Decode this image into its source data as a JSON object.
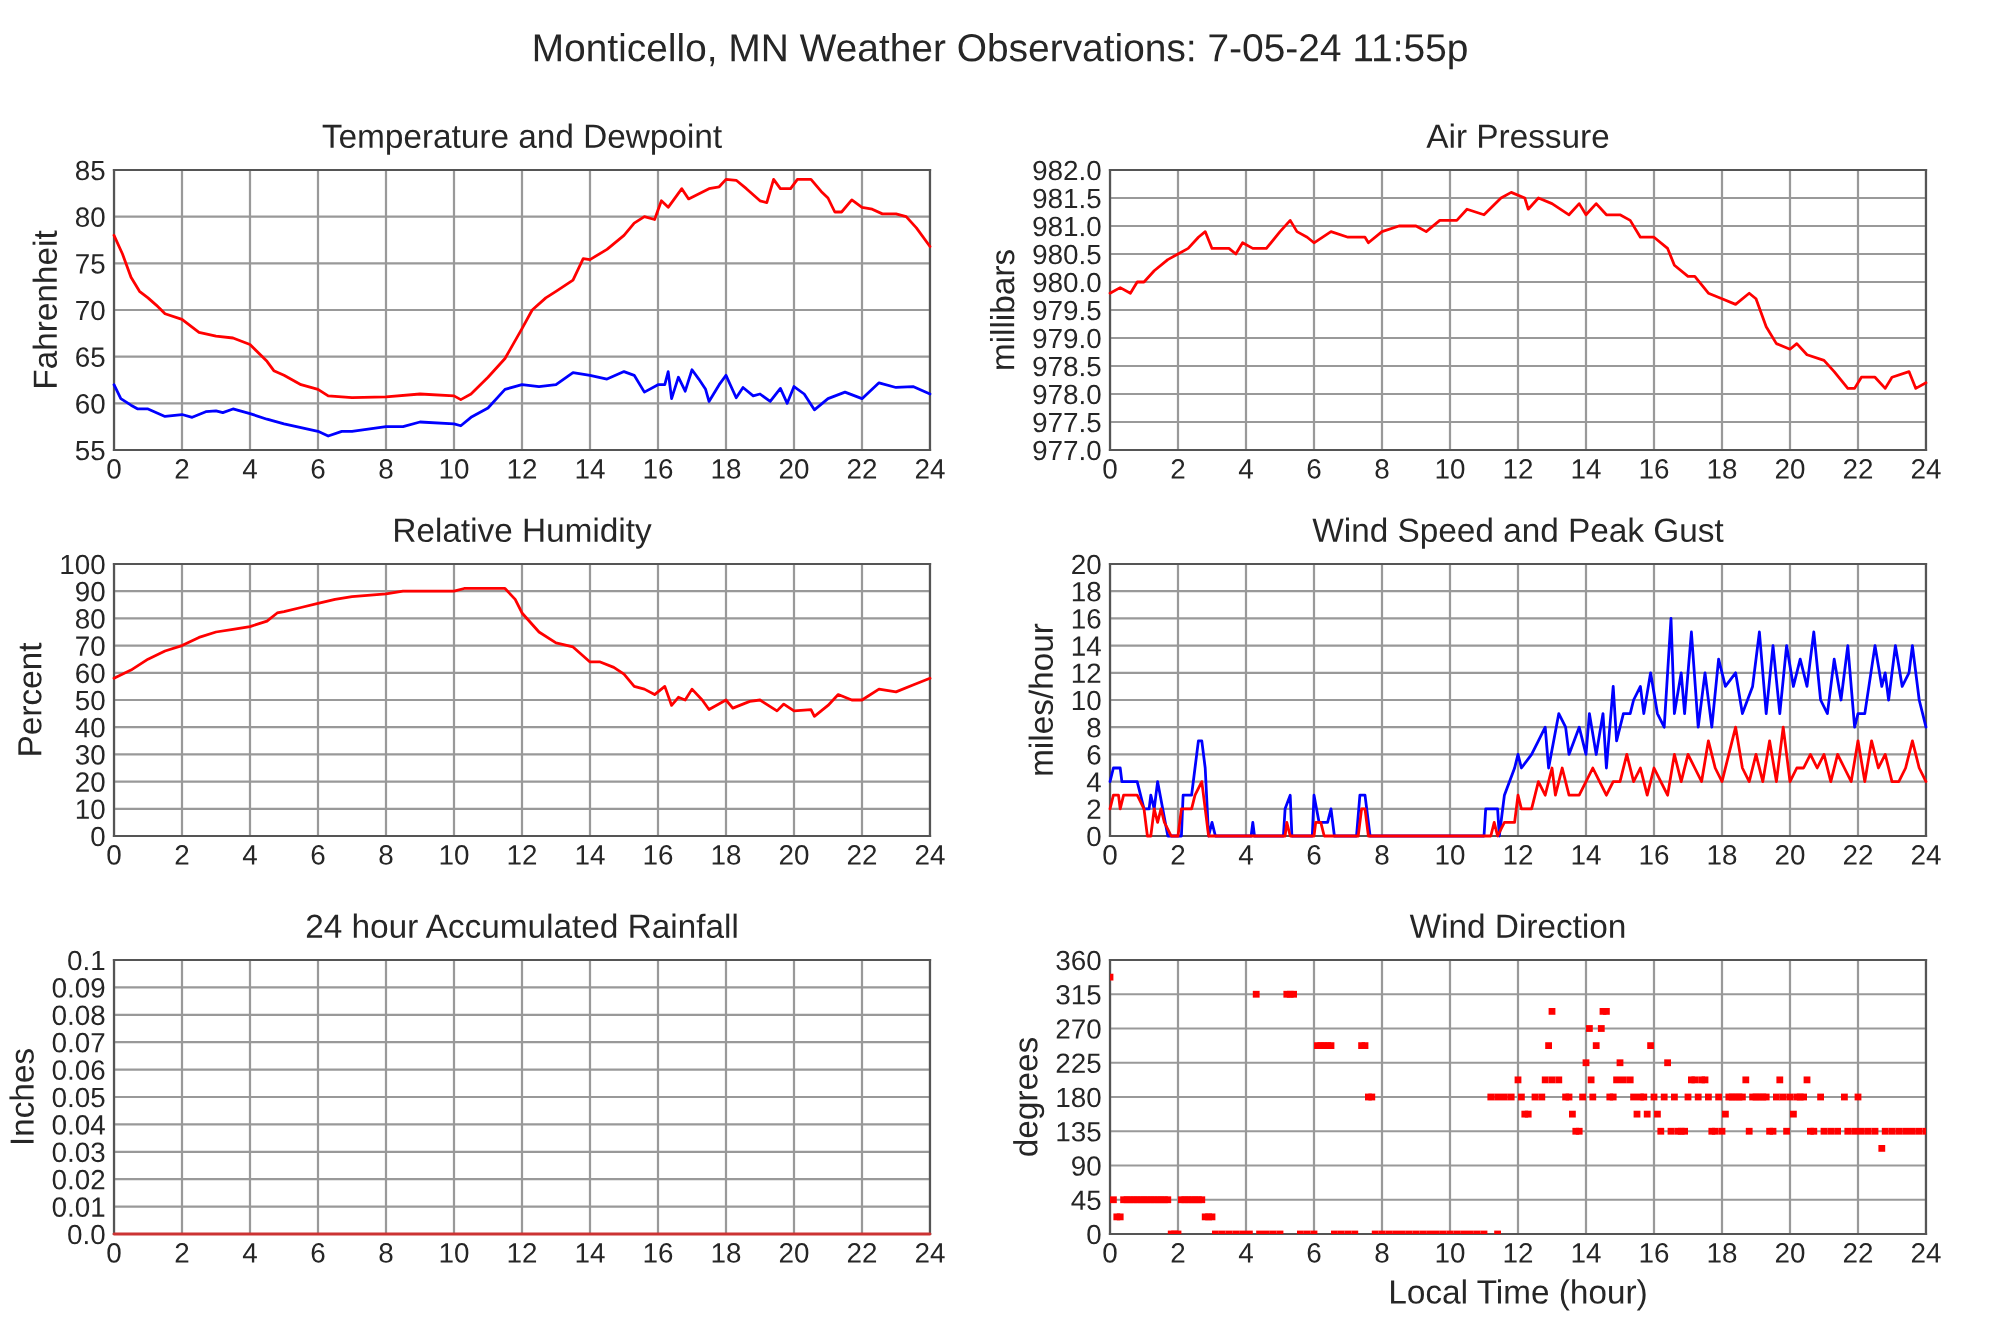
{
  "chart_data": [
    {
      "type": "line",
      "title": "Temperature and Dewpoint",
      "ylabel": "Fahrenheit",
      "annotations": [
        "Monticello, MN Weather Observations: 7-05-24 11:55p"
      ],
      "grid": true,
      "xlim": [
        0,
        24
      ],
      "xticks": [
        0,
        2,
        4,
        6,
        8,
        10,
        12,
        14,
        16,
        18,
        20,
        22,
        24
      ],
      "ylim": [
        55,
        85
      ],
      "yticks": [
        55,
        60,
        65,
        70,
        75,
        80,
        85
      ],
      "series": [
        {
          "color": "#ff0000",
          "x": [
            0,
            0.25,
            0.5,
            0.75,
            1,
            1.25,
            1.5,
            2,
            2.5,
            3,
            3.5,
            4,
            4.5,
            4.7,
            5,
            5.5,
            6,
            6.3,
            7,
            8,
            9,
            10,
            10.2,
            10.5,
            11,
            11.5,
            12,
            12.3,
            12.7,
            13,
            13.5,
            13.8,
            14,
            14.5,
            15,
            15.3,
            15.6,
            15.9,
            16.1,
            16.3,
            16.7,
            16.9,
            17.5,
            17.8,
            18,
            18.3,
            18.6,
            19,
            19.2,
            19.4,
            19.6,
            19.9,
            20.1,
            20.5,
            20.8,
            21,
            21.2,
            21.4,
            21.7,
            22,
            22.3,
            22.6,
            23,
            23.3,
            23.6,
            24
          ],
          "values": [
            78,
            76,
            73.5,
            72,
            71.3,
            70.5,
            69.6,
            69,
            67.6,
            67.2,
            67,
            66.3,
            64.5,
            63.5,
            63,
            62,
            61.5,
            60.8,
            60.6,
            60.7,
            61,
            60.8,
            60.4,
            61,
            62.8,
            64.8,
            68,
            70,
            71.3,
            72,
            73.2,
            75.5,
            75.4,
            76.5,
            78,
            79.3,
            80,
            79.7,
            81.7,
            81,
            83,
            81.9,
            83,
            83.2,
            84,
            83.9,
            83,
            81.7,
            81.5,
            84,
            83,
            83,
            84,
            84,
            82.7,
            82,
            80.5,
            80.5,
            81.8,
            81,
            80.8,
            80.3,
            80.3,
            80,
            78.8,
            76.8
          ]
        },
        {
          "color": "#0000ff",
          "x": [
            0,
            0.2,
            0.5,
            0.7,
            1,
            1.5,
            2,
            2.3,
            2.7,
            3,
            3.2,
            3.5,
            4,
            4.5,
            5,
            5.5,
            6,
            6.3,
            6.7,
            7,
            8,
            8.5,
            9,
            10,
            10.2,
            10.5,
            11,
            11.5,
            12,
            12.5,
            13,
            13.5,
            14,
            14.5,
            15,
            15.3,
            15.6,
            16,
            16.2,
            16.3,
            16.4,
            16.6,
            16.8,
            17,
            17.2,
            17.4,
            17.5,
            17.8,
            18,
            18.3,
            18.5,
            18.8,
            19,
            19.3,
            19.6,
            19.8,
            20,
            20.3,
            20.6,
            21,
            21.5,
            22,
            22.5,
            23,
            23.5,
            24
          ],
          "values": [
            62,
            60.5,
            59.8,
            59.4,
            59.4,
            58.6,
            58.8,
            58.5,
            59.1,
            59.2,
            59,
            59.4,
            58.9,
            58.3,
            57.8,
            57.4,
            57,
            56.5,
            57,
            57,
            57.5,
            57.5,
            58,
            57.8,
            57.6,
            58.5,
            59.5,
            61.5,
            62,
            61.8,
            62,
            63.3,
            63,
            62.6,
            63.4,
            63,
            61.2,
            62,
            62,
            63.4,
            60.5,
            62.8,
            61.3,
            63.6,
            62.6,
            61.5,
            60.2,
            62,
            63,
            60.6,
            61.7,
            60.8,
            61,
            60.2,
            61.6,
            60,
            61.8,
            61,
            59.3,
            60.5,
            61.2,
            60.5,
            62.2,
            61.7,
            61.8,
            61
          ]
        }
      ]
    },
    {
      "type": "line",
      "title": "Air Pressure",
      "ylabel": "millibars",
      "grid": true,
      "xlim": [
        0,
        24
      ],
      "xticks": [
        0,
        2,
        4,
        6,
        8,
        10,
        12,
        14,
        16,
        18,
        20,
        22,
        24
      ],
      "ylim": [
        977,
        982
      ],
      "yticks": [
        {
          "value": 977,
          "label": "977.0"
        },
        {
          "value": 977.5,
          "label": "977.5"
        },
        {
          "value": 978,
          "label": "978.0"
        },
        {
          "value": 978.5,
          "label": "978.5"
        },
        {
          "value": 979,
          "label": "979.0"
        },
        {
          "value": 979.5,
          "label": "979.5"
        },
        {
          "value": 980,
          "label": "980.0"
        },
        {
          "value": 980.5,
          "label": "980.5"
        },
        {
          "value": 981,
          "label": "981.0"
        },
        {
          "value": 981.5,
          "label": "981.5"
        },
        {
          "value": 982,
          "label": "982.0"
        }
      ],
      "series": [
        {
          "color": "#ff0000",
          "x": [
            0,
            0.3,
            0.6,
            0.8,
            1,
            1.3,
            1.7,
            2,
            2.3,
            2.6,
            2.8,
            3,
            3.5,
            3.7,
            3.9,
            4.2,
            4.6,
            5,
            5.3,
            5.5,
            5.8,
            6,
            6.5,
            7,
            7.5,
            7.6,
            8,
            8.5,
            9,
            9.3,
            9.7,
            10.2,
            10.5,
            11,
            11.5,
            11.8,
            12.2,
            12.3,
            12.6,
            13,
            13.5,
            13.8,
            14,
            14.3,
            14.6,
            15,
            15.3,
            15.6,
            16,
            16.4,
            16.6,
            17,
            17.2,
            17.6,
            18,
            18.4,
            18.8,
            19,
            19.3,
            19.6,
            20,
            20.2,
            20.5,
            21,
            21.3,
            21.7,
            21.9,
            22.1,
            22.5,
            22.8,
            23,
            23.5,
            23.7,
            24
          ],
          "values": [
            979.8,
            979.9,
            979.8,
            980,
            980,
            980.2,
            980.4,
            980.5,
            980.6,
            980.8,
            980.9,
            980.6,
            980.6,
            980.5,
            980.7,
            980.6,
            980.6,
            980.9,
            981.1,
            980.9,
            980.8,
            980.7,
            980.9,
            980.8,
            980.8,
            980.7,
            980.9,
            981,
            981,
            980.9,
            981.1,
            981.1,
            981.3,
            981.2,
            981.5,
            981.6,
            981.5,
            981.3,
            981.5,
            981.4,
            981.2,
            981.4,
            981.2,
            981.4,
            981.2,
            981.2,
            981.1,
            980.8,
            980.8,
            980.6,
            980.3,
            980.1,
            980.1,
            979.8,
            979.7,
            979.6,
            979.8,
            979.7,
            979.2,
            978.9,
            978.8,
            978.9,
            978.7,
            978.6,
            978.4,
            978.1,
            978.1,
            978.3,
            978.3,
            978.1,
            978.3,
            978.4,
            978.1,
            978.2
          ]
        }
      ]
    },
    {
      "type": "line",
      "title": "Relative Humidity",
      "ylabel": "Percent",
      "grid": true,
      "xlim": [
        0,
        24
      ],
      "xticks": [
        0,
        2,
        4,
        6,
        8,
        10,
        12,
        14,
        16,
        18,
        20,
        22,
        24
      ],
      "ylim": [
        0,
        100
      ],
      "yticks": [
        0,
        10,
        20,
        30,
        40,
        50,
        60,
        70,
        80,
        90,
        100
      ],
      "series": [
        {
          "color": "#ff0000",
          "x": [
            0,
            0.5,
            1,
            1.5,
            2,
            2.5,
            3,
            3.5,
            4,
            4.5,
            4.8,
            5,
            5.5,
            6,
            6.5,
            7,
            8,
            8.5,
            10,
            10.3,
            11.5,
            11.8,
            12,
            12.5,
            13,
            13.5,
            14,
            14.3,
            14.7,
            15,
            15.3,
            15.6,
            15.9,
            16.2,
            16.4,
            16.6,
            16.8,
            17,
            17.3,
            17.5,
            18,
            18.2,
            18.7,
            19,
            19.5,
            19.7,
            20,
            20.5,
            20.6,
            21,
            21.3,
            21.7,
            22,
            22.5,
            23,
            23.5,
            24
          ],
          "values": [
            58,
            61,
            65,
            68,
            70,
            73,
            75,
            76,
            77,
            79,
            82,
            82.5,
            84,
            85.5,
            87,
            88,
            89,
            90,
            90,
            91,
            91,
            87,
            82,
            75,
            71,
            69.5,
            64,
            64,
            62,
            59.5,
            55,
            54,
            52,
            55,
            48,
            51,
            50,
            54,
            50,
            46.5,
            50,
            47,
            49.5,
            50,
            46,
            48.5,
            46,
            46.5,
            44,
            48,
            52,
            50,
            50,
            54,
            53,
            55.5,
            58
          ]
        }
      ]
    },
    {
      "type": "line",
      "title": "Wind Speed and Peak Gust",
      "ylabel": "miles/hour",
      "grid": true,
      "xlim": [
        0,
        24
      ],
      "xticks": [
        0,
        2,
        4,
        6,
        8,
        10,
        12,
        14,
        16,
        18,
        20,
        22,
        24
      ],
      "ylim": [
        0,
        20
      ],
      "yticks": [
        0,
        2,
        4,
        6,
        8,
        10,
        12,
        14,
        16,
        18,
        20
      ],
      "series": [
        {
          "color": "#0000ff",
          "x": [
            0,
            0.1,
            0.3,
            0.35,
            0.8,
            1.0,
            1.15,
            1.2,
            1.3,
            1.4,
            1.55,
            1.7,
            2.0,
            2.1,
            2.15,
            2.4,
            2.5,
            2.6,
            2.7,
            2.8,
            2.9,
            3.0,
            3.1,
            4.15,
            4.2,
            4.25,
            5.1,
            5.15,
            5.3,
            5.35,
            5.95,
            6.0,
            6.15,
            6.4,
            6.5,
            6.6,
            7.25,
            7.35,
            7.5,
            7.65,
            11.0,
            11.05,
            11.4,
            11.45,
            11.6,
            11.9,
            12.0,
            12.1,
            12.4,
            12.6,
            12.8,
            12.9,
            13.2,
            13.4,
            13.5,
            13.8,
            14.0,
            14.1,
            14.3,
            14.5,
            14.6,
            14.8,
            14.9,
            15.1,
            15.3,
            15.4,
            15.6,
            15.7,
            15.9,
            16.1,
            16.3,
            16.5,
            16.6,
            16.8,
            16.9,
            17.1,
            17.3,
            17.5,
            17.7,
            17.9,
            18.1,
            18.4,
            18.6,
            18.9,
            19.1,
            19.3,
            19.5,
            19.7,
            19.9,
            20.1,
            20.3,
            20.5,
            20.7,
            20.9,
            21.1,
            21.3,
            21.5,
            21.7,
            21.9,
            22.0,
            22.2,
            22.5,
            22.7,
            22.8,
            22.9,
            23.1,
            23.3,
            23.5,
            23.6,
            23.8,
            24.0
          ],
          "values": [
            4,
            5,
            5,
            4,
            4,
            2,
            2,
            3,
            2,
            4,
            2,
            0,
            0,
            0,
            3,
            3,
            5,
            7,
            7,
            5,
            0,
            1,
            0,
            0,
            1,
            0,
            0,
            2,
            3,
            0,
            0,
            3,
            1,
            1,
            2,
            0,
            0,
            3,
            3,
            0,
            0,
            2,
            2,
            0,
            3,
            5,
            6,
            5,
            6,
            7,
            8,
            5,
            9,
            8,
            6,
            8,
            6,
            9,
            6,
            9,
            5,
            11,
            7,
            9,
            9,
            10,
            11,
            9,
            12,
            9,
            8,
            16,
            9,
            12,
            9,
            15,
            8,
            12,
            8,
            13,
            11,
            12,
            9,
            11,
            15,
            9,
            14,
            9,
            14,
            11,
            13,
            11,
            15,
            10,
            9,
            13,
            10,
            14,
            8,
            9,
            9,
            14,
            11,
            12,
            10,
            14,
            11,
            12,
            14,
            10,
            8
          ]
        },
        {
          "color": "#ff0000",
          "x": [
            0,
            0.1,
            0.25,
            0.3,
            0.4,
            0.8,
            1.0,
            1.1,
            1.2,
            1.3,
            1.4,
            1.5,
            1.6,
            1.8,
            2.0,
            2.1,
            2.4,
            2.5,
            2.7,
            2.8,
            2.9,
            5.15,
            5.2,
            5.3,
            6.0,
            6.05,
            6.2,
            6.3,
            7.3,
            7.4,
            7.5,
            7.6,
            11.2,
            11.3,
            11.4,
            11.6,
            11.9,
            12.0,
            12.1,
            12.4,
            12.6,
            12.8,
            13.0,
            13.1,
            13.3,
            13.5,
            13.8,
            14.0,
            14.2,
            14.4,
            14.6,
            14.8,
            15.0,
            15.2,
            15.4,
            15.6,
            15.8,
            16.0,
            16.2,
            16.4,
            16.6,
            16.8,
            17.0,
            17.2,
            17.4,
            17.6,
            17.8,
            18.0,
            18.2,
            18.4,
            18.6,
            18.8,
            19.0,
            19.2,
            19.4,
            19.6,
            19.8,
            20.0,
            20.2,
            20.4,
            20.6,
            20.8,
            21.0,
            21.2,
            21.4,
            21.6,
            21.8,
            22.0,
            22.2,
            22.4,
            22.6,
            22.8,
            23.0,
            23.2,
            23.4,
            23.6,
            23.8,
            24
          ],
          "values": [
            2,
            3,
            3,
            2,
            3,
            3,
            2,
            0,
            0,
            2,
            1,
            2,
            1,
            0,
            0,
            2,
            2,
            3,
            4,
            2,
            0,
            0,
            1,
            0,
            0,
            1,
            1,
            0,
            0,
            2,
            2,
            0,
            0,
            1,
            0,
            1,
            1,
            3,
            2,
            2,
            4,
            3,
            5,
            3,
            5,
            3,
            3,
            4,
            5,
            4,
            3,
            4,
            4,
            6,
            4,
            5,
            3,
            5,
            4,
            3,
            6,
            4,
            6,
            5,
            4,
            7,
            5,
            4,
            6,
            8,
            5,
            4,
            6,
            4,
            7,
            4,
            8,
            4,
            5,
            5,
            6,
            5,
            6,
            4,
            6,
            5,
            4,
            7,
            4,
            7,
            5,
            6,
            4,
            4,
            5,
            7,
            5,
            4
          ]
        }
      ]
    },
    {
      "type": "line",
      "title": "24 hour Accumulated Rainfall",
      "ylabel": "Inches",
      "grid": true,
      "xlim": [
        0,
        24
      ],
      "xticks": [
        0,
        2,
        4,
        6,
        8,
        10,
        12,
        14,
        16,
        18,
        20,
        22,
        24
      ],
      "ylim": [
        0,
        0.1
      ],
      "yticks": [
        {
          "value": 0,
          "label": "0.0"
        },
        0.01,
        0.02,
        0.03,
        0.04,
        0.05,
        0.06,
        0.07,
        0.08,
        0.09,
        0.1
      ],
      "series": [
        {
          "color": "#cc3333",
          "x": [
            0,
            24
          ],
          "values": [
            0,
            0
          ]
        }
      ]
    },
    {
      "type": "scatter",
      "title": "Wind Direction",
      "xlabel": "Local Time (hour)",
      "ylabel": "degrees",
      "grid": true,
      "marker": "square",
      "xlim": [
        0,
        24
      ],
      "xticks": [
        0,
        2,
        4,
        6,
        8,
        10,
        12,
        14,
        16,
        18,
        20,
        22,
        24
      ],
      "ylim": [
        0,
        360
      ],
      "yticks": [
        0,
        45,
        90,
        135,
        180,
        225,
        270,
        315,
        360
      ],
      "series": [
        {
          "color": "#ff0000",
          "x": [
            0,
            0.1,
            0.2,
            0.3,
            0.4,
            0.5,
            0.6,
            0.7,
            0.8,
            0.9,
            1.0,
            1.1,
            1.2,
            1.3,
            1.4,
            1.5,
            1.6,
            1.7,
            1.8,
            1.9,
            2.0,
            2.1,
            2.2,
            2.3,
            2.4,
            2.5,
            2.6,
            2.7,
            2.8,
            2.9,
            3.0,
            3.1,
            3.3,
            3.5,
            3.7,
            3.9,
            4.1,
            4.3,
            4.4,
            4.6,
            4.8,
            5.0,
            5.2,
            5.3,
            5.4,
            5.6,
            5.8,
            6.0,
            6.1,
            6.2,
            6.3,
            6.4,
            6.5,
            6.6,
            6.8,
            7.0,
            7.2,
            7.4,
            7.5,
            7.6,
            7.7,
            7.8,
            8.0,
            8.2,
            8.4,
            8.6,
            8.8,
            9.0,
            9.2,
            9.4,
            9.6,
            9.8,
            10.0,
            10.2,
            10.4,
            10.6,
            10.8,
            11.0,
            11.4,
            11.2,
            11.4,
            11.6,
            11.8,
            12.0,
            12.1,
            12.2,
            12.3,
            12.5,
            12.7,
            12.8,
            12.9,
            13.0,
            13.0,
            13.2,
            13.4,
            13.5,
            13.6,
            13.7,
            13.8,
            13.9,
            14.0,
            14.1,
            14.15,
            14.2,
            14.3,
            14.45,
            14.5,
            14.6,
            14.7,
            14.8,
            14.9,
            15.0,
            15.1,
            15.3,
            15.4,
            15.5,
            15.6,
            15.7,
            15.8,
            15.9,
            16.0,
            16.1,
            16.2,
            16.3,
            16.4,
            16.5,
            16.6,
            16.7,
            16.8,
            16.9,
            17.0,
            17.1,
            17.2,
            17.3,
            17.4,
            17.5,
            17.6,
            17.7,
            17.8,
            17.9,
            18.0,
            18.1,
            18.2,
            18.3,
            18.4,
            18.5,
            18.6,
            18.7,
            18.8,
            18.9,
            19.0,
            19.1,
            19.2,
            19.3,
            19.4,
            19.5,
            19.6,
            19.7,
            19.8,
            19.9,
            20.0,
            20.1,
            20.2,
            20.3,
            20.4,
            20.5,
            20.6,
            20.7,
            20.9,
            21.0,
            21.2,
            21.4,
            21.6,
            21.7,
            21.9,
            22.0,
            22.1,
            22.3,
            22.5,
            22.7,
            22.8,
            23.0,
            23.2,
            23.4,
            23.6,
            23.8,
            24.0
          ],
          "values": [
            337.5,
            45,
            22.5,
            22.5,
            45,
            45,
            45,
            45,
            45,
            45,
            45,
            45,
            45,
            45,
            45,
            45,
            45,
            45,
            0,
            0,
            0,
            45,
            45,
            45,
            45,
            45,
            45,
            45,
            22.5,
            22.5,
            22.5,
            0,
            0,
            0,
            0,
            0,
            0,
            315,
            0,
            0,
            0,
            0,
            315,
            315,
            315,
            0,
            0,
            0,
            247.5,
            247.5,
            247.5,
            247.5,
            247.5,
            0,
            0,
            0,
            0,
            247.5,
            247.5,
            180,
            180,
            0,
            0,
            0,
            0,
            0,
            0,
            0,
            0,
            0,
            0,
            0,
            0,
            0,
            0,
            0,
            0,
            0,
            0,
            180,
            180,
            180,
            180,
            202.5,
            180,
            157.5,
            157.5,
            180,
            180,
            202.5,
            247.5,
            292.5,
            202.5,
            202.5,
            180,
            180,
            157.5,
            135,
            135,
            180,
            225,
            270,
            202.5,
            180,
            247.5,
            270,
            292.5,
            292.5,
            180,
            180,
            202.5,
            225,
            202.5,
            202.5,
            180,
            157.5,
            180,
            180,
            157.5,
            247.5,
            180,
            157.5,
            135,
            180,
            225,
            135,
            180,
            135,
            135,
            135,
            180,
            202.5,
            202.5,
            180,
            202.5,
            202.5,
            180,
            135,
            135,
            180,
            135,
            157.5,
            180,
            180,
            180,
            180,
            180,
            202.5,
            135,
            180,
            180,
            180,
            180,
            180,
            135,
            135,
            180,
            202.5,
            180,
            135,
            180,
            157.5,
            180,
            180,
            180,
            202.5,
            135,
            135,
            180,
            135,
            135,
            135,
            180,
            135,
            135,
            180,
            135,
            135,
            135,
            112.5,
            135,
            135,
            135,
            135,
            135,
            135,
            135
          ]
        }
      ]
    }
  ]
}
